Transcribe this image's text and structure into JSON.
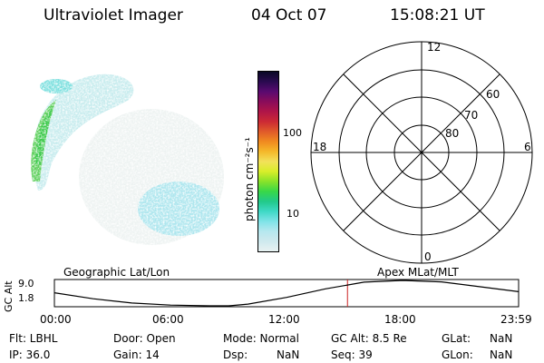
{
  "header": {
    "title": "Ultraviolet Imager",
    "date": "04 Oct 07",
    "time": "15:08:21 UT"
  },
  "colorbar": {
    "tick_100": "100",
    "tick_10": "10",
    "unit": "photon cm⁻²s⁻¹",
    "colors": [
      "#e8f2f2",
      "#cfe9ee",
      "#b6e8ef",
      "#7fe3e8",
      "#3fd9c6",
      "#22c98a",
      "#38d848",
      "#88e32a",
      "#d8ee2a",
      "#f2e15a",
      "#f5b82a",
      "#f08a20",
      "#e05a2a",
      "#cc2a35",
      "#b01548",
      "#8a0c5a",
      "#5a0a70",
      "#2a0a50",
      "#0a0825"
    ]
  },
  "polar": {
    "mlt_labels": [
      "12",
      "18",
      "6",
      "0"
    ],
    "lat_labels": [
      "60",
      "70",
      "80"
    ]
  },
  "alt_strip": {
    "geo_label": "Geographic Lat/Lon",
    "apex_label": "Apex  MLat/MLT",
    "axis_label": "GC Alt",
    "tick_hi": "9.0",
    "tick_lo": "1.8",
    "x_ticks": [
      "00:00",
      "06:00",
      "12:00",
      "18:00",
      "23:59"
    ]
  },
  "chart_data": {
    "type": "line",
    "xlabel": "",
    "ylabel": "GC Alt",
    "x_hours": [
      0,
      2,
      4,
      6,
      8,
      9,
      10,
      12,
      14,
      16,
      18,
      20,
      22,
      23.98
    ],
    "y_alt": [
      5.5,
      3.8,
      2.6,
      2.0,
      1.8,
      1.8,
      2.3,
      4.2,
      6.6,
      8.5,
      9.0,
      8.6,
      7.2,
      5.8
    ],
    "ylim": [
      1.8,
      9.0
    ],
    "xlim": [
      0,
      23.98
    ],
    "current_time_hours": 15.14,
    "current_time_color": "#cc2222"
  },
  "info": {
    "row1": [
      "Flt: LBHL",
      "Door: Open",
      "Mode: Normal",
      "GC Alt: 8.5 Re",
      "GLat:",
      "NaN"
    ],
    "row2": [
      "IP: 36.0",
      "Gain: 14",
      "Dsp:",
      "NaN",
      "Seq: 39",
      "GLon:",
      "NaN"
    ]
  }
}
